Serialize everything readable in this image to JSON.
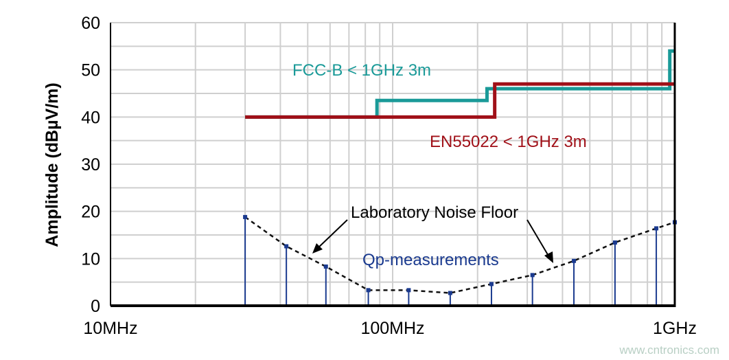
{
  "chart_data": {
    "type": "line",
    "xscale": "log",
    "xlim_hz": [
      10000000,
      1000000000
    ],
    "ylim": [
      0,
      60
    ],
    "ylabel": "Amplitude (dBµV/m)",
    "xlabel": "",
    "x_ticks": [
      {
        "value": 10000000,
        "label": "10MHz"
      },
      {
        "value": 100000000,
        "label": "100MHz"
      },
      {
        "value": 1000000000,
        "label": "1GHz"
      }
    ],
    "y_ticks": [
      0,
      10,
      20,
      30,
      40,
      50,
      60
    ],
    "grid": true,
    "series": [
      {
        "name": "FCC-B < 1GHz 3m",
        "color": "#1a9a98",
        "style": "step",
        "points": [
          [
            30000000,
            40
          ],
          [
            88000000,
            40
          ],
          [
            88000000,
            43.5
          ],
          [
            216000000,
            43.5
          ],
          [
            216000000,
            46
          ],
          [
            960000000,
            46
          ],
          [
            960000000,
            54
          ],
          [
            1000000000,
            54
          ]
        ]
      },
      {
        "name": "EN55022 < 1GHz 3m",
        "color": "#a01018",
        "style": "step",
        "points": [
          [
            30000000,
            40
          ],
          [
            230000000,
            40
          ],
          [
            230000000,
            47
          ],
          [
            1000000000,
            47
          ]
        ]
      },
      {
        "name": "Laboratory Noise Floor",
        "color": "#111111",
        "style": "dashed",
        "points": [
          [
            30000000,
            18.8
          ],
          [
            42000000,
            12.6
          ],
          [
            58000000,
            8.3
          ],
          [
            82000000,
            3.3
          ],
          [
            114000000,
            3.3
          ],
          [
            160000000,
            2.7
          ],
          [
            224000000,
            4.6
          ],
          [
            313000000,
            6.5
          ],
          [
            439000000,
            9.5
          ],
          [
            614000000,
            13.4
          ],
          [
            860000000,
            16.4
          ],
          [
            1000000000,
            17.7
          ]
        ]
      },
      {
        "name": "Qp-measurements",
        "color": "#1a3a8f",
        "style": "stem",
        "points": [
          [
            30000000,
            18.8
          ],
          [
            42000000,
            12.6
          ],
          [
            58000000,
            8.3
          ],
          [
            82000000,
            3.3
          ],
          [
            114000000,
            3.3
          ],
          [
            160000000,
            2.7
          ],
          [
            224000000,
            4.6
          ],
          [
            313000000,
            6.5
          ],
          [
            439000000,
            9.5
          ],
          [
            614000000,
            13.4
          ],
          [
            860000000,
            16.4
          ],
          [
            1000000000,
            17.7
          ]
        ]
      }
    ],
    "annotations": {
      "fcc": "FCC-B < 1GHz 3m",
      "en": "EN55022 < 1GHz 3m",
      "noise": "Laboratory Noise Floor",
      "qp": "Qp-measurements"
    }
  },
  "watermark": "www.cntronics.com"
}
